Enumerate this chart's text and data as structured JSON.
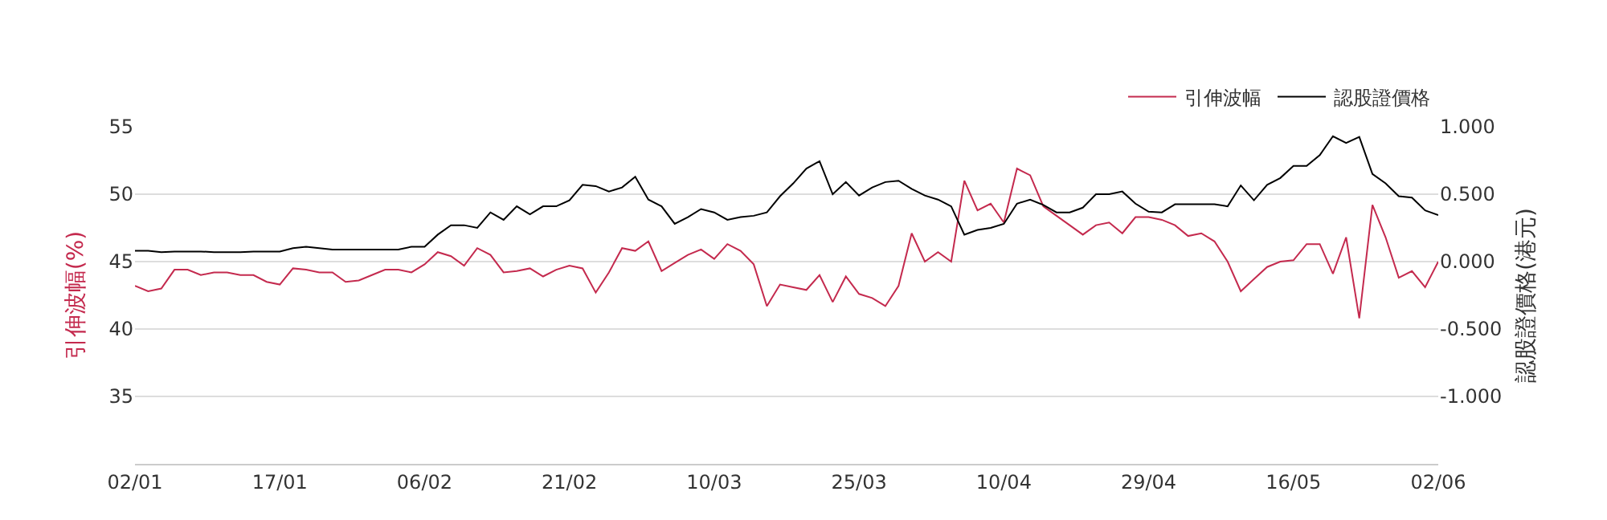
{
  "chart_data": {
    "type": "line",
    "categories": [
      "02/01",
      null,
      null,
      null,
      null,
      null,
      null,
      null,
      null,
      null,
      null,
      "17/01",
      null,
      null,
      null,
      null,
      null,
      null,
      null,
      null,
      null,
      null,
      "06/02",
      null,
      null,
      null,
      null,
      null,
      null,
      null,
      null,
      null,
      null,
      "21/02",
      null,
      null,
      null,
      null,
      null,
      null,
      null,
      null,
      null,
      null,
      "10/03",
      null,
      null,
      null,
      null,
      null,
      null,
      null,
      null,
      null,
      null,
      "25/03",
      null,
      null,
      null,
      null,
      null,
      null,
      null,
      null,
      null,
      null,
      "10/04",
      null,
      null,
      null,
      null,
      null,
      null,
      null,
      null,
      null,
      null,
      "29/04",
      null,
      null,
      null,
      null,
      null,
      null,
      null,
      null,
      null,
      null,
      "16/05",
      null,
      null,
      null,
      null,
      null,
      null,
      null,
      null,
      null,
      null,
      "02/06"
    ],
    "series": [
      {
        "name": "引伸波幅",
        "color": "#c42a4e",
        "axis": "y",
        "values": [
          43.2,
          42.8,
          43.0,
          44.4,
          44.4,
          44.0,
          44.2,
          44.2,
          44.0,
          44.0,
          43.5,
          43.3,
          44.5,
          44.4,
          44.2,
          44.2,
          43.5,
          43.6,
          44.0,
          44.4,
          44.4,
          44.2,
          44.8,
          45.7,
          45.4,
          44.7,
          46.0,
          45.5,
          44.2,
          44.3,
          44.5,
          43.9,
          44.4,
          44.7,
          44.5,
          42.7,
          44.2,
          46.0,
          45.8,
          46.5,
          44.3,
          44.9,
          45.5,
          45.9,
          45.2,
          46.3,
          45.8,
          44.8,
          41.7,
          43.3,
          43.1,
          42.9,
          44.0,
          42.0,
          43.9,
          42.6,
          42.3,
          41.7,
          43.2,
          47.1,
          45.0,
          45.7,
          45.0,
          51.0,
          48.8,
          49.3,
          47.9,
          51.9,
          51.4,
          49.1,
          48.4,
          47.7,
          47.0,
          47.7,
          47.9,
          47.1,
          48.3,
          48.3,
          48.1,
          47.7,
          46.9,
          47.1,
          46.5,
          45.0,
          42.8,
          43.7,
          44.6,
          45.0,
          45.1,
          46.3,
          46.3,
          44.1,
          46.8,
          40.8,
          49.2,
          46.8,
          43.8,
          44.3,
          43.1,
          45.0
        ]
      },
      {
        "name": "認股證價格",
        "color": "#000000",
        "axis": "y2",
        "values": [
          0.08,
          0.08,
          0.07,
          0.075,
          0.075,
          0.075,
          0.07,
          0.07,
          0.07,
          0.075,
          0.075,
          0.075,
          0.1,
          0.11,
          0.1,
          0.09,
          0.09,
          0.09,
          0.09,
          0.09,
          0.09,
          0.11,
          0.11,
          0.2,
          0.27,
          0.27,
          0.25,
          0.365,
          0.31,
          0.41,
          0.35,
          0.41,
          0.41,
          0.455,
          0.57,
          0.56,
          0.52,
          0.55,
          0.63,
          0.46,
          0.41,
          0.28,
          0.33,
          0.39,
          0.365,
          0.31,
          0.33,
          0.34,
          0.365,
          0.485,
          0.58,
          0.69,
          0.745,
          0.5,
          0.59,
          0.49,
          0.55,
          0.59,
          0.6,
          0.54,
          0.49,
          0.46,
          0.41,
          0.2,
          0.235,
          0.25,
          0.28,
          0.43,
          0.46,
          0.42,
          0.365,
          0.365,
          0.4,
          0.5,
          0.5,
          0.52,
          0.43,
          0.37,
          0.365,
          0.425,
          0.425,
          0.425,
          0.425,
          0.41,
          0.565,
          0.455,
          0.57,
          0.62,
          0.71,
          0.71,
          0.79,
          0.93,
          0.88,
          0.925,
          0.65,
          0.58,
          0.485,
          0.475,
          0.38,
          0.345
        ]
      }
    ],
    "ylabel": "引伸波幅(%)",
    "y2label": "認股證價格(港元)",
    "ylim": [
      30,
      55
    ],
    "yticks": [
      35,
      40,
      45,
      50,
      55
    ],
    "y2lim": [
      -1.5,
      1
    ],
    "y2ticks": [
      {
        "value": -1,
        "label": "-1.000"
      },
      {
        "value": -0.5,
        "label": "-0.500"
      },
      {
        "value": 0,
        "label": "0.000"
      },
      {
        "value": 0.5,
        "label": "0.500"
      },
      {
        "value": 1,
        "label": "1.000"
      }
    ],
    "grid": "y",
    "legend": "top right",
    "marker": "none",
    "line_style": "solid"
  }
}
